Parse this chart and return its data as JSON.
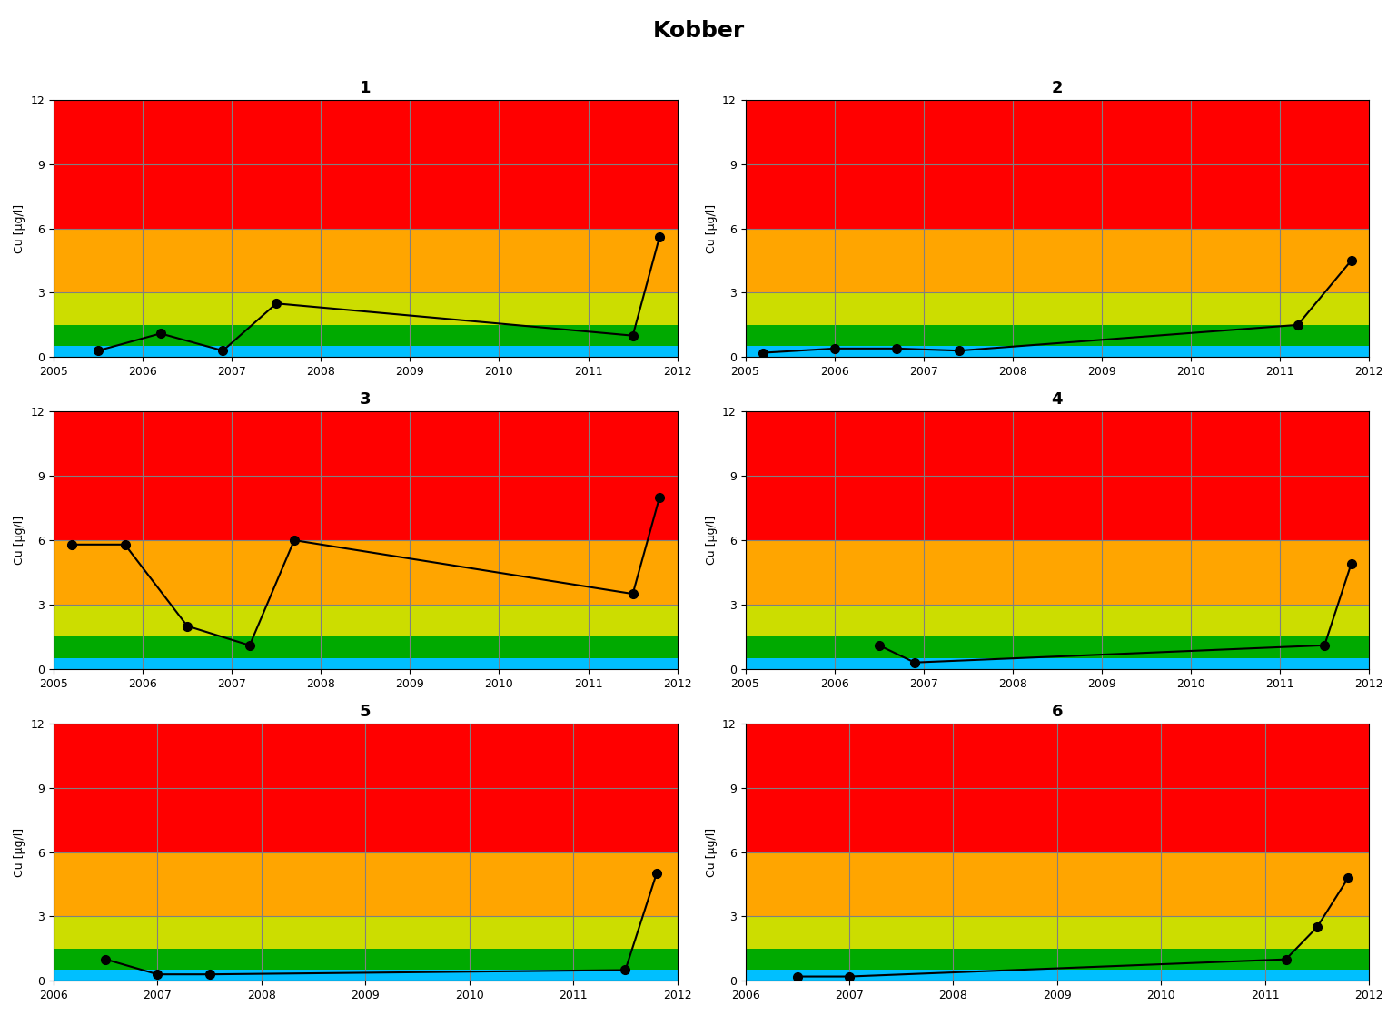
{
  "title": "Kobber",
  "subplot_titles": [
    "1",
    "2",
    "3",
    "4",
    "5",
    "6"
  ],
  "ylabel": "Cu [µg/l]",
  "ylim": [
    0,
    12
  ],
  "yticks": [
    0,
    3,
    6,
    9,
    12
  ],
  "background_color": "#ffffff",
  "color_bands": [
    {
      "ymin": 0,
      "ymax": 0.5,
      "color": "#00BFFF"
    },
    {
      "ymin": 0.5,
      "ymax": 1.5,
      "color": "#00AA00"
    },
    {
      "ymin": 1.5,
      "ymax": 3.0,
      "color": "#CCDD00"
    },
    {
      "ymin": 3.0,
      "ymax": 6.0,
      "color": "#FFA500"
    },
    {
      "ymin": 6.0,
      "ymax": 12.0,
      "color": "#FF0000"
    }
  ],
  "series": {
    "1": {
      "x": [
        2005.5,
        2006.2,
        2006.9,
        2007.5,
        2011.5,
        2011.8
      ],
      "y": [
        0.3,
        1.1,
        0.3,
        2.5,
        1.0,
        5.6
      ]
    },
    "2": {
      "x": [
        2005.2,
        2006.0,
        2006.7,
        2007.4,
        2011.2,
        2011.8
      ],
      "y": [
        0.2,
        0.4,
        0.4,
        0.3,
        1.5,
        4.5
      ]
    },
    "3": {
      "x": [
        2005.2,
        2005.8,
        2006.5,
        2007.2,
        2007.7,
        2011.5,
        2011.8
      ],
      "y": [
        5.8,
        5.8,
        2.0,
        1.1,
        6.0,
        3.5,
        8.0
      ]
    },
    "4": {
      "x": [
        2006.5,
        2006.9,
        2011.5,
        2011.8
      ],
      "y": [
        1.1,
        0.3,
        1.1,
        4.9
      ]
    },
    "5": {
      "x": [
        2006.5,
        2007.0,
        2007.5,
        2011.5,
        2011.8
      ],
      "y": [
        1.0,
        0.3,
        0.3,
        0.5,
        5.0
      ]
    },
    "6": {
      "x": [
        2006.5,
        2007.0,
        2011.2,
        2011.5,
        2011.8
      ],
      "y": [
        0.2,
        0.2,
        1.0,
        2.5,
        4.8
      ]
    }
  },
  "xlims": {
    "1": [
      2005,
      2012
    ],
    "2": [
      2005,
      2012
    ],
    "3": [
      2005,
      2012
    ],
    "4": [
      2005,
      2012
    ],
    "5": [
      2006,
      2012
    ],
    "6": [
      2006,
      2012
    ]
  },
  "xticks": {
    "1": [
      2005,
      2006,
      2007,
      2008,
      2009,
      2010,
      2011,
      2012
    ],
    "2": [
      2005,
      2006,
      2007,
      2008,
      2009,
      2010,
      2011,
      2012
    ],
    "3": [
      2005,
      2006,
      2007,
      2008,
      2009,
      2010,
      2011,
      2012
    ],
    "4": [
      2005,
      2006,
      2007,
      2008,
      2009,
      2010,
      2011,
      2012
    ],
    "5": [
      2006,
      2007,
      2008,
      2009,
      2010,
      2011,
      2012
    ],
    "6": [
      2006,
      2007,
      2008,
      2009,
      2010,
      2011,
      2012
    ]
  }
}
